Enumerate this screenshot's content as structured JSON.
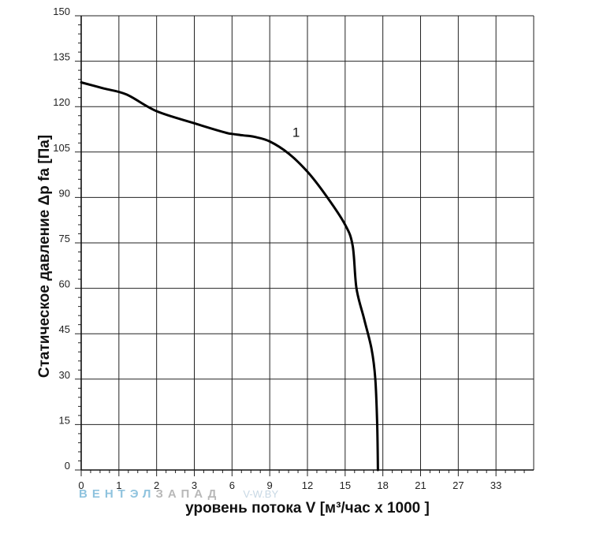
{
  "chart_data": {
    "type": "line",
    "ylabel": "Статическое давление  Δp fa [Па]",
    "xlabel": "уровень потока  V [м³/час x 1000 ]",
    "x_tick_labels": [
      "0",
      "1",
      "2",
      "3",
      "6",
      "9",
      "12",
      "15",
      "18",
      "21",
      "27",
      "33"
    ],
    "y_ticks": [
      0,
      15,
      30,
      45,
      60,
      75,
      90,
      105,
      120,
      135,
      150
    ],
    "ylim": [
      0,
      150
    ],
    "grid": true,
    "series": [
      {
        "name": "1",
        "color": "#000000",
        "points": [
          {
            "x": 0.0,
            "y": 128
          },
          {
            "x": 0.6,
            "y": 126
          },
          {
            "x": 1.2,
            "y": 124
          },
          {
            "x": 2.0,
            "y": 118.5
          },
          {
            "x": 3.0,
            "y": 114.5
          },
          {
            "x": 3.8,
            "y": 111.5
          },
          {
            "x": 4.0,
            "y": 111
          },
          {
            "x": 4.3,
            "y": 110.5
          },
          {
            "x": 4.6,
            "y": 110
          },
          {
            "x": 5.0,
            "y": 108.5
          },
          {
            "x": 5.5,
            "y": 104.5
          },
          {
            "x": 6.0,
            "y": 98.5
          },
          {
            "x": 6.5,
            "y": 90.5
          },
          {
            "x": 7.0,
            "y": 81
          },
          {
            "x": 7.2,
            "y": 74
          },
          {
            "x": 7.3,
            "y": 60
          },
          {
            "x": 7.5,
            "y": 50
          },
          {
            "x": 7.7,
            "y": 40
          },
          {
            "x": 7.8,
            "y": 30
          },
          {
            "x": 7.85,
            "y": 15
          },
          {
            "x": 7.87,
            "y": 0
          }
        ]
      }
    ],
    "annotations": [
      {
        "text": "1",
        "x": 5.7,
        "y": 109
      }
    ]
  },
  "watermark": {
    "part1": "ВЕНТЭЛ",
    "part2": "ЗАПАД",
    "part3": "V-W.BY"
  }
}
